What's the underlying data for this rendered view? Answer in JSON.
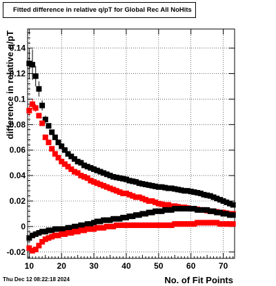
{
  "chart_data": {
    "type": "scatter",
    "title": "Fitted difference in relative q/pT for Global Rec All NoHits",
    "xlabel": "No. of Fit Points",
    "ylabel": "difference in relative q/pT",
    "xlim": [
      9.5,
      73.5
    ],
    "ylim": [
      -0.025,
      0.155
    ],
    "x_ticks": [
      10,
      20,
      30,
      40,
      50,
      60,
      70
    ],
    "y_ticks": [
      -0.02,
      0,
      0.02,
      0.04,
      0.06,
      0.08,
      0.1,
      0.12,
      0.14
    ],
    "y_tick_labels": [
      "-0.02",
      "0",
      "0.02",
      "0.04",
      "0.06",
      "0.08",
      "0.1",
      "0.12",
      "0.14"
    ],
    "grid": true,
    "legend": "none",
    "series": [
      {
        "color": "#000000",
        "x": [
          10,
          11,
          12,
          13,
          14,
          15,
          16,
          17,
          18,
          19,
          20,
          21,
          22,
          23,
          24,
          25,
          26,
          27,
          28,
          29,
          30,
          31,
          32,
          33,
          34,
          35,
          36,
          37,
          38,
          39,
          40,
          41,
          42,
          43,
          44,
          45,
          46,
          47,
          48,
          49,
          50,
          51,
          52,
          53,
          54,
          55,
          56,
          57,
          58,
          59,
          60,
          61,
          62,
          63,
          64,
          65,
          66,
          67,
          68,
          69,
          70,
          71,
          72,
          73
        ],
        "y": [
          0.128,
          0.127,
          0.118,
          0.108,
          0.095,
          0.084,
          0.079,
          0.074,
          0.07,
          0.066,
          0.063,
          0.06,
          0.057,
          0.055,
          0.053,
          0.051,
          0.05,
          0.048,
          0.047,
          0.046,
          0.045,
          0.044,
          0.043,
          0.042,
          0.041,
          0.04,
          0.039,
          0.0385,
          0.038,
          0.0375,
          0.037,
          0.036,
          0.0355,
          0.035,
          0.034,
          0.0335,
          0.033,
          0.0325,
          0.032,
          0.0315,
          0.031,
          0.031,
          0.0305,
          0.03,
          0.03,
          0.0295,
          0.029,
          0.0285,
          0.028,
          0.028,
          0.0275,
          0.027,
          0.0265,
          0.026,
          0.025,
          0.0245,
          0.024,
          0.023,
          0.022,
          0.021,
          0.02,
          0.019,
          0.018,
          0.017
        ],
        "yerr": [
          0.012,
          0.012,
          0.008,
          0.006,
          0.004,
          0.003,
          0.002,
          0.002,
          0.002,
          0.002,
          0.001,
          0.001,
          0.001,
          0.001,
          0.001,
          0.001,
          0.001,
          0.001,
          0.001,
          0.001,
          0.001,
          0.001,
          0.001,
          0.001,
          0.001,
          0.001,
          0.001,
          0.001,
          0.001,
          0.001,
          0.001,
          0.001,
          0.001,
          0.001,
          0.001,
          0.001,
          0.001,
          0.001,
          0.001,
          0.001,
          0.001,
          0.001,
          0.001,
          0.001,
          0.001,
          0.001,
          0.001,
          0.001,
          0.001,
          0.001,
          0.001,
          0.001,
          0.001,
          0.001,
          0.001,
          0.001,
          0.001,
          0.001,
          0.001,
          0.001,
          0.001,
          0.001,
          0.001,
          0.001
        ]
      },
      {
        "color": "#ff0000",
        "x": [
          10,
          11,
          12,
          13,
          14,
          15,
          16,
          17,
          18,
          19,
          20,
          21,
          22,
          23,
          24,
          25,
          26,
          27,
          28,
          29,
          30,
          31,
          32,
          33,
          34,
          35,
          36,
          37,
          38,
          39,
          40,
          41,
          42,
          43,
          44,
          45,
          46,
          47,
          48,
          49,
          50,
          51,
          52,
          53,
          54,
          55,
          56,
          57,
          58,
          59,
          60,
          61,
          62,
          63,
          64,
          65,
          66,
          67,
          68,
          69,
          70,
          71,
          72,
          73
        ],
        "y": [
          0.091,
          0.096,
          0.093,
          0.087,
          0.081,
          0.07,
          0.066,
          0.061,
          0.057,
          0.054,
          0.051,
          0.049,
          0.047,
          0.045,
          0.043,
          0.042,
          0.04,
          0.039,
          0.038,
          0.036,
          0.035,
          0.034,
          0.033,
          0.032,
          0.031,
          0.03,
          0.029,
          0.028,
          0.027,
          0.026,
          0.026,
          0.025,
          0.024,
          0.023,
          0.023,
          0.022,
          0.021,
          0.02,
          0.02,
          0.019,
          0.018,
          0.0175,
          0.017,
          0.017,
          0.016,
          0.016,
          0.0155,
          0.015,
          0.015,
          0.0145,
          0.014,
          0.014,
          0.0135,
          0.013,
          0.013,
          0.0125,
          0.012,
          0.012,
          0.0115,
          0.011,
          0.011,
          0.0105,
          0.01,
          0.01
        ],
        "yerr": [
          0.004,
          0.004,
          0.003,
          0.002,
          0.002,
          0.002,
          0.001,
          0.001,
          0.001,
          0.001,
          0.001,
          0.001,
          0.001,
          0.001,
          0.001,
          0.001,
          0.001,
          0.001,
          0.001,
          0.001,
          0.001,
          0.001,
          0.001,
          0.001,
          0.001,
          0.001,
          0.001,
          0.001,
          0.001,
          0.001,
          0.001,
          0.001,
          0.001,
          0.001,
          0.001,
          0.001,
          0.001,
          0.001,
          0.001,
          0.001,
          0.001,
          0.001,
          0.001,
          0.001,
          0.001,
          0.001,
          0.001,
          0.001,
          0.001,
          0.001,
          0.001,
          0.001,
          0.001,
          0.001,
          0.001,
          0.001,
          0.001,
          0.001,
          0.001,
          0.001,
          0.001,
          0.001,
          0.001,
          0.001
        ]
      },
      {
        "color": "#000000",
        "x": [
          10,
          11,
          12,
          13,
          14,
          15,
          16,
          17,
          18,
          19,
          20,
          21,
          22,
          23,
          24,
          25,
          26,
          27,
          28,
          29,
          30,
          31,
          32,
          33,
          34,
          35,
          36,
          37,
          38,
          39,
          40,
          41,
          42,
          43,
          44,
          45,
          46,
          47,
          48,
          49,
          50,
          51,
          52,
          53,
          54,
          55,
          56,
          57,
          58,
          59,
          60,
          61,
          62,
          63,
          64,
          65,
          66,
          67,
          68,
          69,
          70,
          71,
          72,
          73
        ],
        "y": [
          -0.009,
          -0.007,
          -0.006,
          -0.005,
          -0.004,
          -0.004,
          -0.003,
          -0.003,
          -0.002,
          -0.002,
          -0.002,
          -0.002,
          -0.001,
          -0.001,
          0.0,
          0.0,
          0.001,
          0.001,
          0.002,
          0.002,
          0.003,
          0.004,
          0.004,
          0.005,
          0.005,
          0.005,
          0.006,
          0.006,
          0.006,
          0.007,
          0.007,
          0.008,
          0.008,
          0.009,
          0.009,
          0.01,
          0.01,
          0.011,
          0.011,
          0.012,
          0.012,
          0.012,
          0.013,
          0.013,
          0.013,
          0.014,
          0.014,
          0.014,
          0.014,
          0.014,
          0.014,
          0.014,
          0.013,
          0.013,
          0.013,
          0.013,
          0.012,
          0.012,
          0.011,
          0.011,
          0.01,
          0.01,
          0.009,
          0.009
        ],
        "yerr": [
          0.002,
          0.001,
          0.001,
          0.001,
          0.001,
          0.001,
          0.001,
          0.001,
          0.001,
          0.001,
          0.001,
          0.001,
          0.001,
          0.001,
          0.001,
          0.001,
          0.001,
          0.001,
          0.001,
          0.001,
          0.001,
          0.001,
          0.001,
          0.001,
          0.001,
          0.001,
          0.001,
          0.001,
          0.001,
          0.001,
          0.001,
          0.001,
          0.001,
          0.001,
          0.001,
          0.001,
          0.001,
          0.001,
          0.001,
          0.001,
          0.001,
          0.001,
          0.001,
          0.001,
          0.001,
          0.001,
          0.001,
          0.001,
          0.001,
          0.001,
          0.001,
          0.001,
          0.001,
          0.001,
          0.001,
          0.001,
          0.001,
          0.001,
          0.001,
          0.001,
          0.001,
          0.001,
          0.001,
          0.001
        ]
      },
      {
        "color": "#ff0000",
        "x": [
          10,
          11,
          12,
          13,
          14,
          15,
          16,
          17,
          18,
          19,
          20,
          21,
          22,
          23,
          24,
          25,
          26,
          27,
          28,
          29,
          30,
          31,
          32,
          33,
          34,
          35,
          36,
          37,
          38,
          39,
          40,
          41,
          42,
          43,
          44,
          45,
          46,
          47,
          48,
          49,
          50,
          51,
          52,
          53,
          54,
          55,
          56,
          57,
          58,
          59,
          60,
          61,
          62,
          63,
          64,
          65,
          66,
          67,
          68,
          69,
          70,
          71,
          72,
          73
        ],
        "y": [
          -0.017,
          -0.019,
          -0.018,
          -0.015,
          -0.012,
          -0.01,
          -0.009,
          -0.008,
          -0.007,
          -0.007,
          -0.006,
          -0.006,
          -0.005,
          -0.005,
          -0.004,
          -0.004,
          -0.003,
          -0.003,
          -0.002,
          -0.002,
          -0.002,
          -0.001,
          -0.001,
          -0.001,
          0.0,
          0.0,
          0.0,
          0.001,
          0.001,
          0.001,
          0.001,
          0.001,
          0.001,
          0.001,
          0.001,
          0.001,
          0.001,
          0.001,
          0.001,
          0.001,
          0.001,
          0.001,
          0.001,
          0.001,
          0.001,
          0.002,
          0.002,
          0.002,
          0.002,
          0.002,
          0.002,
          0.002,
          0.003,
          0.003,
          0.003,
          0.003,
          0.003,
          0.003,
          0.003,
          0.002,
          0.002,
          0.002,
          0.002,
          0.002
        ],
        "yerr": [
          0.002,
          0.002,
          0.001,
          0.001,
          0.001,
          0.001,
          0.001,
          0.001,
          0.001,
          0.001,
          0.001,
          0.001,
          0.001,
          0.001,
          0.001,
          0.001,
          0.001,
          0.001,
          0.001,
          0.001,
          0.001,
          0.001,
          0.001,
          0.001,
          0.001,
          0.001,
          0.001,
          0.001,
          0.001,
          0.001,
          0.001,
          0.001,
          0.001,
          0.001,
          0.001,
          0.001,
          0.001,
          0.001,
          0.001,
          0.001,
          0.001,
          0.001,
          0.001,
          0.001,
          0.001,
          0.001,
          0.001,
          0.001,
          0.001,
          0.001,
          0.001,
          0.001,
          0.001,
          0.001,
          0.001,
          0.001,
          0.001,
          0.001,
          0.001,
          0.001,
          0.001,
          0.001,
          0.001,
          0.001
        ]
      }
    ]
  },
  "footer": {
    "timestamp": "Thu Dec 12 08:22:18 2024"
  }
}
